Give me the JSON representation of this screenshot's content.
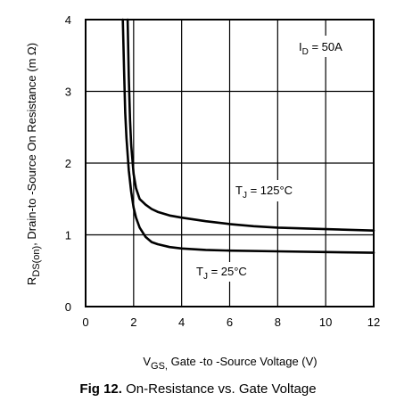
{
  "chart_data": {
    "type": "line",
    "xlim": [
      0,
      12
    ],
    "ylim": [
      0,
      4
    ],
    "x_ticks": [
      0,
      2,
      4,
      6,
      8,
      10,
      12
    ],
    "y_ticks": [
      0,
      1,
      2,
      3,
      4
    ],
    "grid": true,
    "xlabel": {
      "main": "V",
      "sub": "GS,",
      "rest": " Gate -to -Source Voltage  (V)"
    },
    "ylabel": {
      "main": "R",
      "sub": "DS(on)",
      "rest": ",  Drain-to -Source On Resistance (m Ω)"
    },
    "annotation": {
      "main": "I",
      "sub": "D",
      "rest": " = 50A"
    },
    "series": [
      {
        "name": "T_J = 125°C",
        "label": {
          "main": "T",
          "sub": "J",
          "rest": " = 125°C"
        },
        "x": [
          1.75,
          1.8,
          1.85,
          1.9,
          2.0,
          2.1,
          2.25,
          2.5,
          2.75,
          3.0,
          3.5,
          4.0,
          5.0,
          6.0,
          7.0,
          8.0,
          10.0,
          12.0
        ],
        "y": [
          4.0,
          3.2,
          2.6,
          2.25,
          1.85,
          1.65,
          1.5,
          1.42,
          1.36,
          1.32,
          1.27,
          1.24,
          1.19,
          1.15,
          1.12,
          1.1,
          1.08,
          1.06
        ]
      },
      {
        "name": "T_J = 25°C",
        "label": {
          "main": "T",
          "sub": "J",
          "rest": " = 25°C"
        },
        "x": [
          1.55,
          1.6,
          1.65,
          1.7,
          1.8,
          1.9,
          2.0,
          2.1,
          2.25,
          2.5,
          2.75,
          3.0,
          3.5,
          4.0,
          5.0,
          6.0,
          8.0,
          10.0,
          12.0
        ],
        "y": [
          4.0,
          3.3,
          2.7,
          2.35,
          1.9,
          1.6,
          1.38,
          1.24,
          1.1,
          0.97,
          0.9,
          0.87,
          0.83,
          0.81,
          0.79,
          0.78,
          0.77,
          0.76,
          0.75
        ]
      }
    ]
  },
  "caption": {
    "label": "Fig 12.",
    "text": " On-Resistance vs. Gate Voltage"
  }
}
